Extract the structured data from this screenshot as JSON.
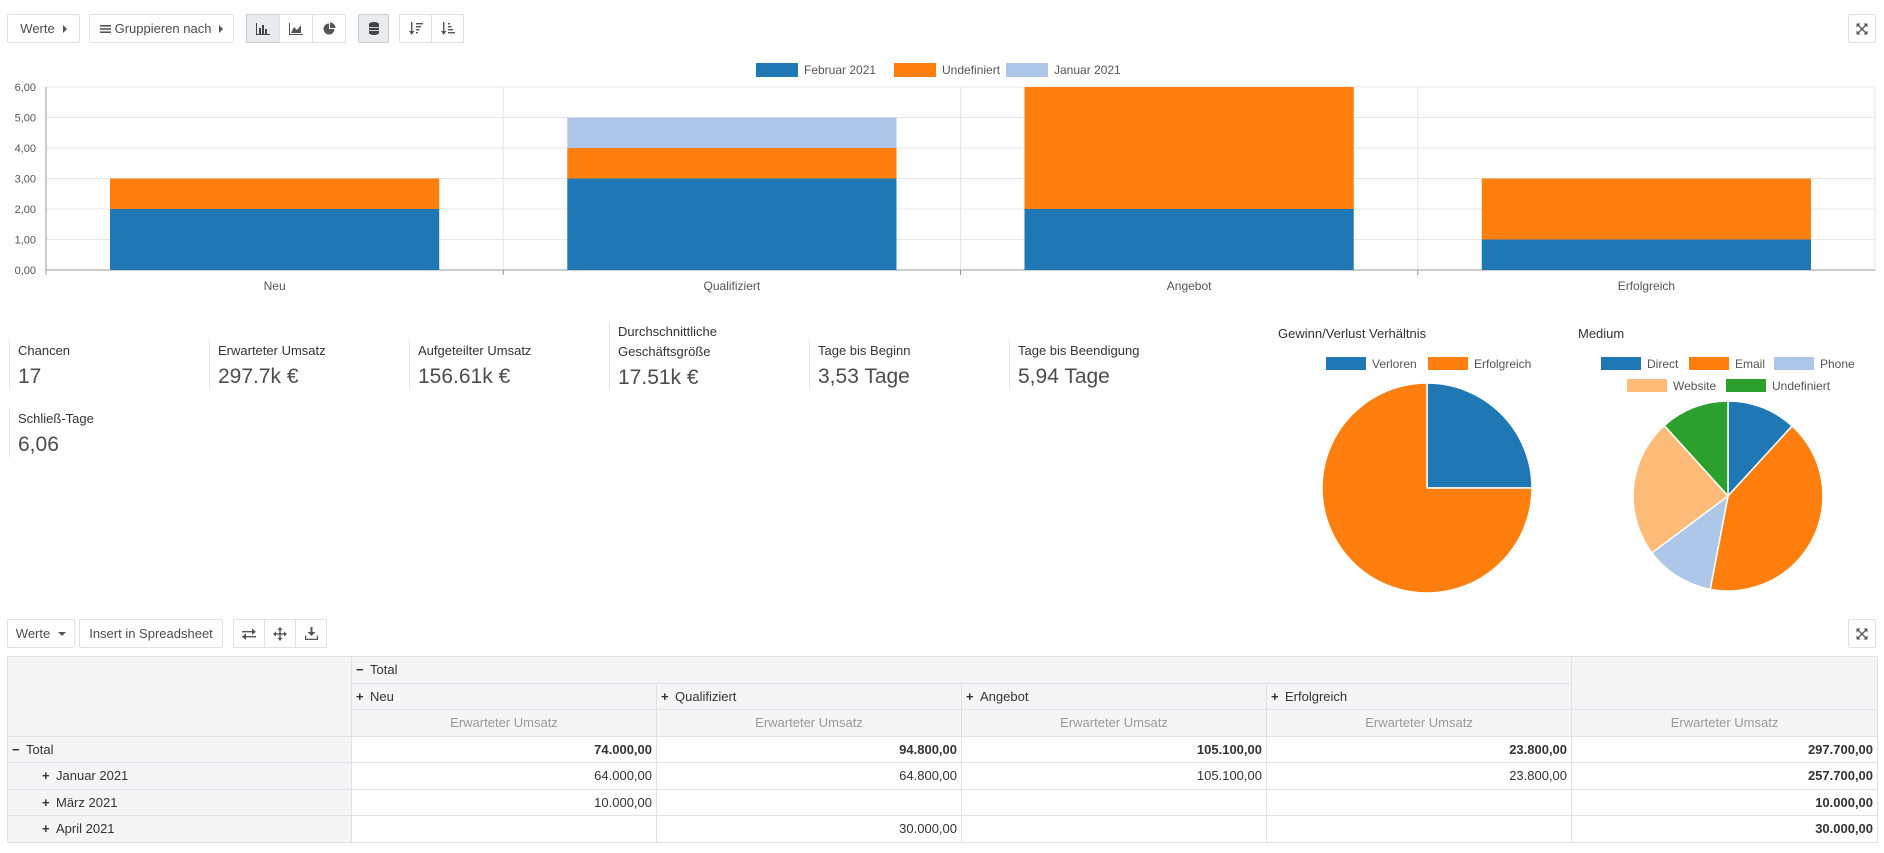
{
  "toolbar": {
    "measures_label": "Werte",
    "groupby_label": "Gruppieren nach"
  },
  "chart_data": {
    "type": "bar",
    "stacked": true,
    "categories": [
      "Neu",
      "Qualifiziert",
      "Angebot",
      "Erfolgreich"
    ],
    "series": [
      {
        "name": "Februar 2021",
        "color": "#1f77b4",
        "values": [
          2,
          3,
          2,
          1
        ]
      },
      {
        "name": "Undefiniert",
        "color": "#ff7f0e",
        "values": [
          1,
          1,
          4,
          2
        ]
      },
      {
        "name": "Januar 2021",
        "color": "#aec7e8",
        "values": [
          0,
          1,
          0,
          0
        ]
      }
    ],
    "ylim": [
      0,
      6
    ],
    "yticks": [
      "0,00",
      "1,00",
      "2,00",
      "3,00",
      "4,00",
      "5,00",
      "6,00"
    ],
    "legend": "top-center",
    "grid": true
  },
  "kpis": [
    {
      "label": "Chancen",
      "value": "17"
    },
    {
      "label": "Erwarteter Umsatz",
      "value": "297.7k €"
    },
    {
      "label": "Aufgeteilter Umsatz",
      "value": "156.61k €"
    },
    {
      "label": "Durchschnittliche",
      "label2": "Geschäftsgröße",
      "value": "17.51k €"
    },
    {
      "label": "Tage bis Beginn",
      "value": "3,53 Tage"
    },
    {
      "label": "Tage bis Beendigung",
      "value": "5,94 Tage"
    },
    {
      "label": "Schließ-Tage",
      "value": "6,06"
    }
  ],
  "pie_winloss": {
    "title": "Gewinn/Verlust Verhältnis",
    "slices": [
      {
        "name": "Verloren",
        "value": 25,
        "color": "#1f77b4"
      },
      {
        "name": "Erfolgreich",
        "value": 75,
        "color": "#ff7f0e"
      }
    ]
  },
  "pie_medium": {
    "title": "Medium",
    "slices": [
      {
        "name": "Direct",
        "value": 11.8,
        "color": "#1f77b4"
      },
      {
        "name": "Email",
        "value": 41.2,
        "color": "#ff7f0e"
      },
      {
        "name": "Phone",
        "value": 11.8,
        "color": "#aec7e8"
      },
      {
        "name": "Website",
        "value": 23.5,
        "color": "#ffbb78"
      },
      {
        "name": "Undefiniert",
        "value": 11.7,
        "color": "#2ca02c"
      }
    ]
  },
  "pivot_toolbar": {
    "measures_label": "Werte",
    "insert_label": "Insert in Spreadsheet"
  },
  "pivot": {
    "col_total": "Total",
    "cols": [
      "Neu",
      "Qualifiziert",
      "Angebot",
      "Erfolgreich"
    ],
    "measure": "Erwarteter Umsatz",
    "rows": [
      {
        "label": "Total",
        "values": [
          "74.000,00",
          "94.800,00",
          "105.100,00",
          "23.800,00",
          "297.700,00"
        ],
        "is_total": true
      },
      {
        "label": "Januar 2021",
        "values": [
          "64.000,00",
          "64.800,00",
          "105.100,00",
          "23.800,00",
          "257.700,00"
        ]
      },
      {
        "label": "März 2021",
        "values": [
          "10.000,00",
          "",
          "",
          "",
          "10.000,00"
        ]
      },
      {
        "label": "April 2021",
        "values": [
          "",
          "30.000,00",
          "",
          "",
          "30.000,00"
        ]
      }
    ]
  }
}
